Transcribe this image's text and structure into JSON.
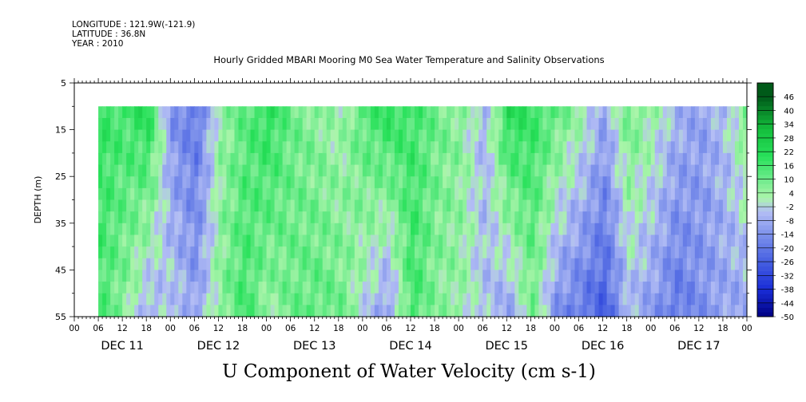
{
  "header": {
    "longitude": "LONGITUDE : 121.9W(-121.9)",
    "latitude": "LATITUDE : 36.8N",
    "year": "YEAR : 2010"
  },
  "chart_data": {
    "type": "heatmap",
    "title": "Hourly Gridded MBARI Mooring M0 Sea Water Temperature and Salinity Observations",
    "xlabel": "U Component of Water Velocity (cm s-1)",
    "ylabel": "DEPTH (m)",
    "ylim": [
      55,
      5
    ],
    "y_ticks": [
      5,
      15,
      25,
      35,
      45,
      55
    ],
    "x_hour_ticks": [
      "00",
      "06",
      "12",
      "18",
      "00",
      "06",
      "12",
      "18",
      "00",
      "06",
      "12",
      "18",
      "00",
      "06",
      "12",
      "18",
      "00",
      "06",
      "12",
      "18",
      "00",
      "06",
      "12",
      "18",
      "00",
      "06",
      "12",
      "18",
      "00"
    ],
    "x_day_labels": [
      "DEC 11",
      "DEC 12",
      "DEC 13",
      "DEC 14",
      "DEC 15",
      "DEC 16",
      "DEC 17"
    ],
    "data_depth_range": [
      10,
      55
    ],
    "data_start_hour": 6,
    "colorbar": {
      "levels": [
        46,
        40,
        34,
        28,
        22,
        16,
        10,
        4,
        -2,
        -8,
        -14,
        -20,
        -26,
        -32,
        -38,
        -44,
        -50
      ],
      "range": [
        -50,
        52
      ]
    },
    "u_velocity_profile": {
      "hours": [
        6,
        12,
        18,
        24,
        30,
        36,
        42,
        48,
        54,
        60,
        66,
        72,
        78,
        84,
        90,
        96,
        102,
        108,
        114,
        120,
        126,
        132,
        138,
        144,
        150,
        156,
        162,
        168
      ],
      "u_surface": [
        18,
        16,
        22,
        -14,
        -20,
        4,
        12,
        20,
        10,
        6,
        2,
        14,
        20,
        16,
        10,
        6,
        -6,
        22,
        18,
        12,
        4,
        -8,
        10,
        4,
        -6,
        -10,
        -4,
        10
      ],
      "u_bottom": [
        14,
        6,
        -8,
        -2,
        -10,
        6,
        16,
        4,
        10,
        12,
        10,
        -2,
        -12,
        16,
        6,
        4,
        -4,
        -10,
        8,
        -14,
        -20,
        -26,
        -6,
        -12,
        -20,
        -14,
        -10,
        -10
      ]
    }
  }
}
